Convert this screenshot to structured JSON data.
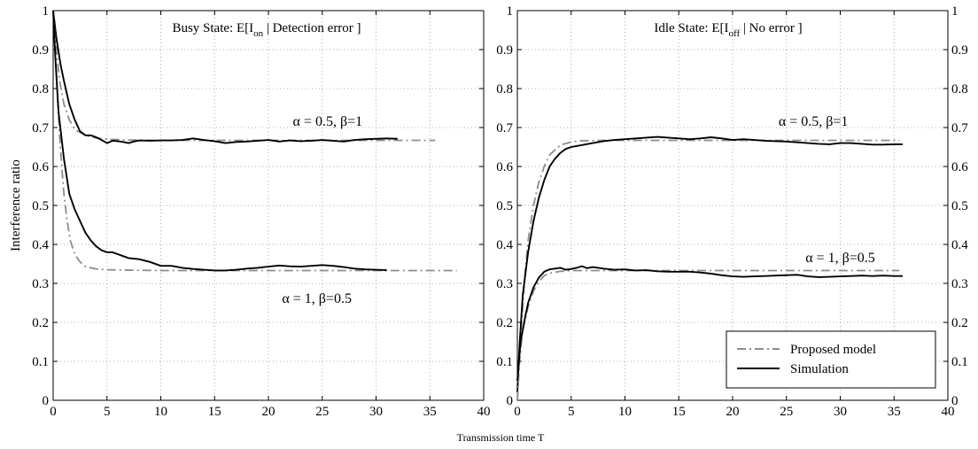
{
  "chart_data": {
    "type": "line",
    "ylabel": "Interference ratio",
    "xlabel": "Transmission time T",
    "ylim": [
      0,
      1
    ],
    "xlim": [
      0,
      40
    ],
    "grid": true,
    "x_ticks": [
      "0",
      "5",
      "10",
      "15",
      "20",
      "25",
      "30",
      "35",
      "40"
    ],
    "y_ticks": [
      "0",
      "0.1",
      "0.2",
      "0.3",
      "0.4",
      "0.5",
      "0.6",
      "0.7",
      "0.8",
      "0.9",
      "1"
    ],
    "legend": {
      "placement": "bottom-right",
      "entries": [
        {
          "label": "Proposed model",
          "style": "dash-dot",
          "color": "#8c8c8c"
        },
        {
          "label": "Simulation",
          "style": "solid",
          "color": "#000000"
        }
      ]
    },
    "colors": {
      "model": "#8c8c8c",
      "simulation": "#000000",
      "grid": "#9a9a9a"
    },
    "panels": [
      {
        "title_main": "Busy State: E[I",
        "title_sub": "on",
        "title_rest": " | Detection error ]",
        "annotations": [
          {
            "text": "α = 0.5, β=1",
            "x": 25.5,
            "y": 0.705
          },
          {
            "text": "α = 1, β=0.5",
            "x": 24.5,
            "y": 0.25
          }
        ],
        "series": [
          {
            "kind": "model",
            "points": [
              [
                0,
                1
              ],
              [
                0.3,
                0.9
              ],
              [
                0.6,
                0.82
              ],
              [
                1,
                0.76
              ],
              [
                1.5,
                0.72
              ],
              [
                2,
                0.695
              ],
              [
                3,
                0.68
              ],
              [
                4,
                0.673
              ],
              [
                5,
                0.67
              ],
              [
                7,
                0.668
              ],
              [
                10,
                0.667
              ],
              [
                20,
                0.667
              ],
              [
                30,
                0.667
              ],
              [
                35.5,
                0.667
              ]
            ]
          },
          {
            "kind": "simulation",
            "points": [
              [
                0,
                1
              ],
              [
                0.3,
                0.93
              ],
              [
                0.7,
                0.86
              ],
              [
                1,
                0.82
              ],
              [
                1.5,
                0.76
              ],
              [
                2,
                0.72
              ],
              [
                2.5,
                0.69
              ],
              [
                3,
                0.68
              ],
              [
                3.5,
                0.68
              ],
              [
                4,
                0.675
              ],
              [
                4.5,
                0.668
              ],
              [
                5,
                0.66
              ],
              [
                5.5,
                0.666
              ],
              [
                6,
                0.665
              ],
              [
                6.5,
                0.663
              ],
              [
                7,
                0.66
              ],
              [
                7.5,
                0.664
              ],
              [
                8,
                0.667
              ],
              [
                9,
                0.666
              ],
              [
                10,
                0.667
              ],
              [
                11,
                0.667
              ],
              [
                12,
                0.668
              ],
              [
                13,
                0.672
              ],
              [
                14,
                0.668
              ],
              [
                15,
                0.665
              ],
              [
                16,
                0.66
              ],
              [
                17,
                0.663
              ],
              [
                18,
                0.664
              ],
              [
                19,
                0.666
              ],
              [
                20,
                0.668
              ],
              [
                21,
                0.664
              ],
              [
                22,
                0.667
              ],
              [
                23,
                0.665
              ],
              [
                24,
                0.666
              ],
              [
                25,
                0.668
              ],
              [
                26,
                0.666
              ],
              [
                27,
                0.664
              ],
              [
                28,
                0.668
              ],
              [
                29,
                0.67
              ],
              [
                30,
                0.671
              ],
              [
                31,
                0.672
              ],
              [
                32,
                0.671
              ]
            ]
          },
          {
            "kind": "model",
            "points": [
              [
                0,
                1
              ],
              [
                0.2,
                0.9
              ],
              [
                0.4,
                0.78
              ],
              [
                0.6,
                0.68
              ],
              [
                0.8,
                0.6
              ],
              [
                1,
                0.53
              ],
              [
                1.3,
                0.46
              ],
              [
                1.6,
                0.41
              ],
              [
                2,
                0.375
              ],
              [
                2.5,
                0.355
              ],
              [
                3,
                0.343
              ],
              [
                4,
                0.337
              ],
              [
                5,
                0.335
              ],
              [
                7,
                0.334
              ],
              [
                10,
                0.333
              ],
              [
                20,
                0.333
              ],
              [
                30,
                0.333
              ],
              [
                37.5,
                0.333
              ]
            ]
          },
          {
            "kind": "simulation",
            "points": [
              [
                0,
                1
              ],
              [
                0.2,
                0.88
              ],
              [
                0.5,
                0.74
              ],
              [
                1,
                0.62
              ],
              [
                1.5,
                0.53
              ],
              [
                2,
                0.49
              ],
              [
                2.5,
                0.46
              ],
              [
                3,
                0.43
              ],
              [
                3.5,
                0.41
              ],
              [
                4,
                0.395
              ],
              [
                4.5,
                0.385
              ],
              [
                5,
                0.38
              ],
              [
                5.5,
                0.38
              ],
              [
                6,
                0.375
              ],
              [
                6.5,
                0.37
              ],
              [
                7,
                0.365
              ],
              [
                8,
                0.362
              ],
              [
                9,
                0.355
              ],
              [
                10,
                0.345
              ],
              [
                11,
                0.345
              ],
              [
                12,
                0.34
              ],
              [
                13,
                0.337
              ],
              [
                14,
                0.335
              ],
              [
                15,
                0.333
              ],
              [
                16,
                0.333
              ],
              [
                17,
                0.335
              ],
              [
                18,
                0.338
              ],
              [
                19,
                0.34
              ],
              [
                20,
                0.343
              ],
              [
                21,
                0.346
              ],
              [
                22,
                0.344
              ],
              [
                23,
                0.343
              ],
              [
                24,
                0.345
              ],
              [
                25,
                0.347
              ],
              [
                26,
                0.345
              ],
              [
                27,
                0.342
              ],
              [
                28,
                0.338
              ],
              [
                29,
                0.336
              ],
              [
                30,
                0.335
              ],
              [
                31,
                0.334
              ]
            ]
          }
        ]
      },
      {
        "title_main": "Idle State: E[I",
        "title_sub": "off",
        "title_rest": " | No error ]",
        "annotations": [
          {
            "text": "α = 0.5, β=1",
            "x": 27.5,
            "y": 0.705
          },
          {
            "text": "α = 1, β=0.5",
            "x": 30,
            "y": 0.355
          }
        ],
        "series": [
          {
            "kind": "model",
            "points": [
              [
                0,
                0
              ],
              [
                0.3,
                0.16
              ],
              [
                0.7,
                0.32
              ],
              [
                1,
                0.41
              ],
              [
                1.5,
                0.5
              ],
              [
                2,
                0.56
              ],
              [
                2.5,
                0.6
              ],
              [
                3,
                0.63
              ],
              [
                4,
                0.655
              ],
              [
                5,
                0.663
              ],
              [
                6,
                0.666
              ],
              [
                8,
                0.667
              ],
              [
                20,
                0.667
              ],
              [
                30,
                0.667
              ],
              [
                35.5,
                0.667
              ]
            ]
          },
          {
            "kind": "simulation",
            "points": [
              [
                0,
                0.02
              ],
              [
                0.2,
                0.14
              ],
              [
                0.5,
                0.27
              ],
              [
                1,
                0.38
              ],
              [
                1.5,
                0.46
              ],
              [
                2,
                0.52
              ],
              [
                2.5,
                0.565
              ],
              [
                3,
                0.6
              ],
              [
                3.5,
                0.62
              ],
              [
                4,
                0.635
              ],
              [
                4.5,
                0.645
              ],
              [
                5,
                0.65
              ],
              [
                6,
                0.655
              ],
              [
                7,
                0.66
              ],
              [
                8,
                0.665
              ],
              [
                9,
                0.668
              ],
              [
                10,
                0.67
              ],
              [
                11,
                0.672
              ],
              [
                12,
                0.674
              ],
              [
                13,
                0.676
              ],
              [
                14,
                0.674
              ],
              [
                15,
                0.672
              ],
              [
                16,
                0.67
              ],
              [
                17,
                0.672
              ],
              [
                18,
                0.675
              ],
              [
                19,
                0.672
              ],
              [
                20,
                0.668
              ],
              [
                21,
                0.67
              ],
              [
                22,
                0.668
              ],
              [
                23,
                0.666
              ],
              [
                24,
                0.665
              ],
              [
                25,
                0.664
              ],
              [
                26,
                0.662
              ],
              [
                27,
                0.66
              ],
              [
                28,
                0.658
              ],
              [
                29,
                0.657
              ],
              [
                30,
                0.66
              ],
              [
                31,
                0.66
              ],
              [
                32,
                0.658
              ],
              [
                33,
                0.656
              ],
              [
                34,
                0.656
              ],
              [
                35,
                0.657
              ],
              [
                35.8,
                0.657
              ]
            ]
          },
          {
            "kind": "model",
            "points": [
              [
                0,
                0
              ],
              [
                0.2,
                0.1
              ],
              [
                0.5,
                0.18
              ],
              [
                1,
                0.24
              ],
              [
                1.5,
                0.28
              ],
              [
                2,
                0.305
              ],
              [
                2.5,
                0.32
              ],
              [
                3,
                0.326
              ],
              [
                4,
                0.331
              ],
              [
                5,
                0.333
              ],
              [
                10,
                0.333
              ],
              [
                20,
                0.333
              ],
              [
                30,
                0.333
              ],
              [
                35.5,
                0.333
              ]
            ]
          },
          {
            "kind": "simulation",
            "points": [
              [
                0,
                0.05
              ],
              [
                0.3,
                0.15
              ],
              [
                0.7,
                0.21
              ],
              [
                1,
                0.25
              ],
              [
                1.5,
                0.29
              ],
              [
                2,
                0.315
              ],
              [
                2.5,
                0.33
              ],
              [
                3,
                0.336
              ],
              [
                3.5,
                0.338
              ],
              [
                4,
                0.34
              ],
              [
                4.5,
                0.335
              ],
              [
                5,
                0.337
              ],
              [
                5.5,
                0.34
              ],
              [
                6,
                0.344
              ],
              [
                6.5,
                0.339
              ],
              [
                7,
                0.342
              ],
              [
                8,
                0.338
              ],
              [
                9,
                0.335
              ],
              [
                10,
                0.336
              ],
              [
                11,
                0.333
              ],
              [
                12,
                0.334
              ],
              [
                13,
                0.331
              ],
              [
                14,
                0.33
              ],
              [
                15,
                0.33
              ],
              [
                16,
                0.33
              ],
              [
                17,
                0.328
              ],
              [
                18,
                0.325
              ],
              [
                19,
                0.321
              ],
              [
                20,
                0.318
              ],
              [
                21,
                0.317
              ],
              [
                22,
                0.318
              ],
              [
                23,
                0.319
              ],
              [
                24,
                0.32
              ],
              [
                25,
                0.321
              ],
              [
                26,
                0.322
              ],
              [
                27,
                0.318
              ],
              [
                28,
                0.316
              ],
              [
                29,
                0.317
              ],
              [
                30,
                0.318
              ],
              [
                31,
                0.319
              ],
              [
                32,
                0.32
              ],
              [
                33,
                0.319
              ],
              [
                34,
                0.32
              ],
              [
                35,
                0.319
              ],
              [
                35.8,
                0.319
              ]
            ]
          }
        ]
      }
    ]
  }
}
